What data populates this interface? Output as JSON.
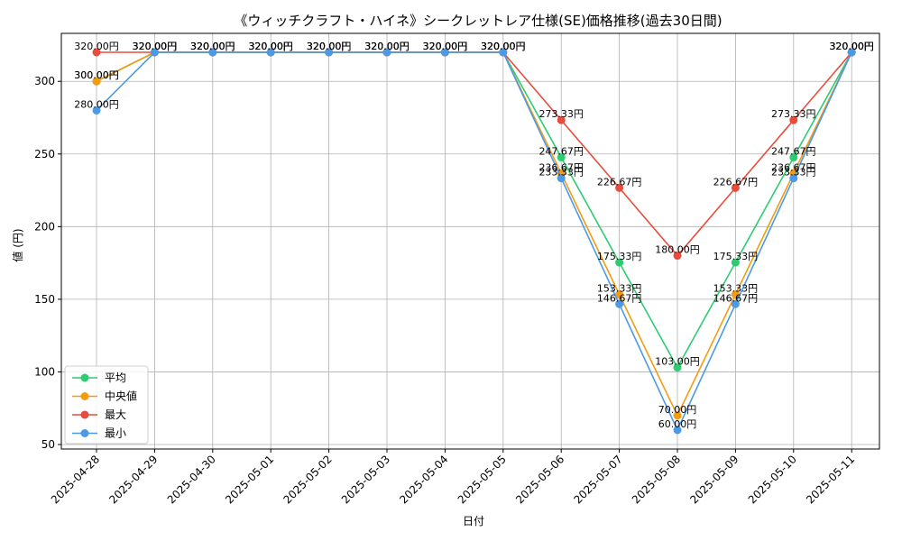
{
  "chart_data": {
    "type": "line",
    "title": "《ウィッチクラフト・ハイネ》シークレットレア仕様(SE)価格推移(過去30日間)",
    "xlabel": "日付",
    "ylabel": "値 (円)",
    "ylim": [
      50,
      330
    ],
    "yticks": [
      50,
      100,
      150,
      200,
      250,
      300
    ],
    "grid": true,
    "legend_position": "lower-left",
    "label_suffix": "円",
    "categories": [
      "2025-04-28",
      "2025-04-29",
      "2025-04-30",
      "2025-05-01",
      "2025-05-02",
      "2025-05-03",
      "2025-05-04",
      "2025-05-05",
      "2025-05-06",
      "2025-05-07",
      "2025-05-08",
      "2025-05-09",
      "2025-05-10",
      "2025-05-11"
    ],
    "series": [
      {
        "name": "平均",
        "color": "#2ecc71",
        "values": [
          300.0,
          320.0,
          320.0,
          320.0,
          320.0,
          320.0,
          320.0,
          320.0,
          247.67,
          175.33,
          103.0,
          175.33,
          247.67,
          320.0
        ]
      },
      {
        "name": "中央値",
        "color": "#f39c12",
        "values": [
          300.0,
          320.0,
          320.0,
          320.0,
          320.0,
          320.0,
          320.0,
          320.0,
          236.67,
          153.33,
          70.0,
          153.33,
          236.67,
          320.0
        ]
      },
      {
        "name": "最大",
        "color": "#e74c3c",
        "values": [
          320.0,
          320.0,
          320.0,
          320.0,
          320.0,
          320.0,
          320.0,
          320.0,
          273.33,
          226.67,
          180.0,
          226.67,
          273.33,
          320.0
        ]
      },
      {
        "name": "最小",
        "color": "#4a9ae8",
        "values": [
          280.0,
          320.0,
          320.0,
          320.0,
          320.0,
          320.0,
          320.0,
          320.0,
          233.33,
          146.67,
          60.0,
          146.67,
          233.33,
          320.0
        ]
      }
    ]
  }
}
